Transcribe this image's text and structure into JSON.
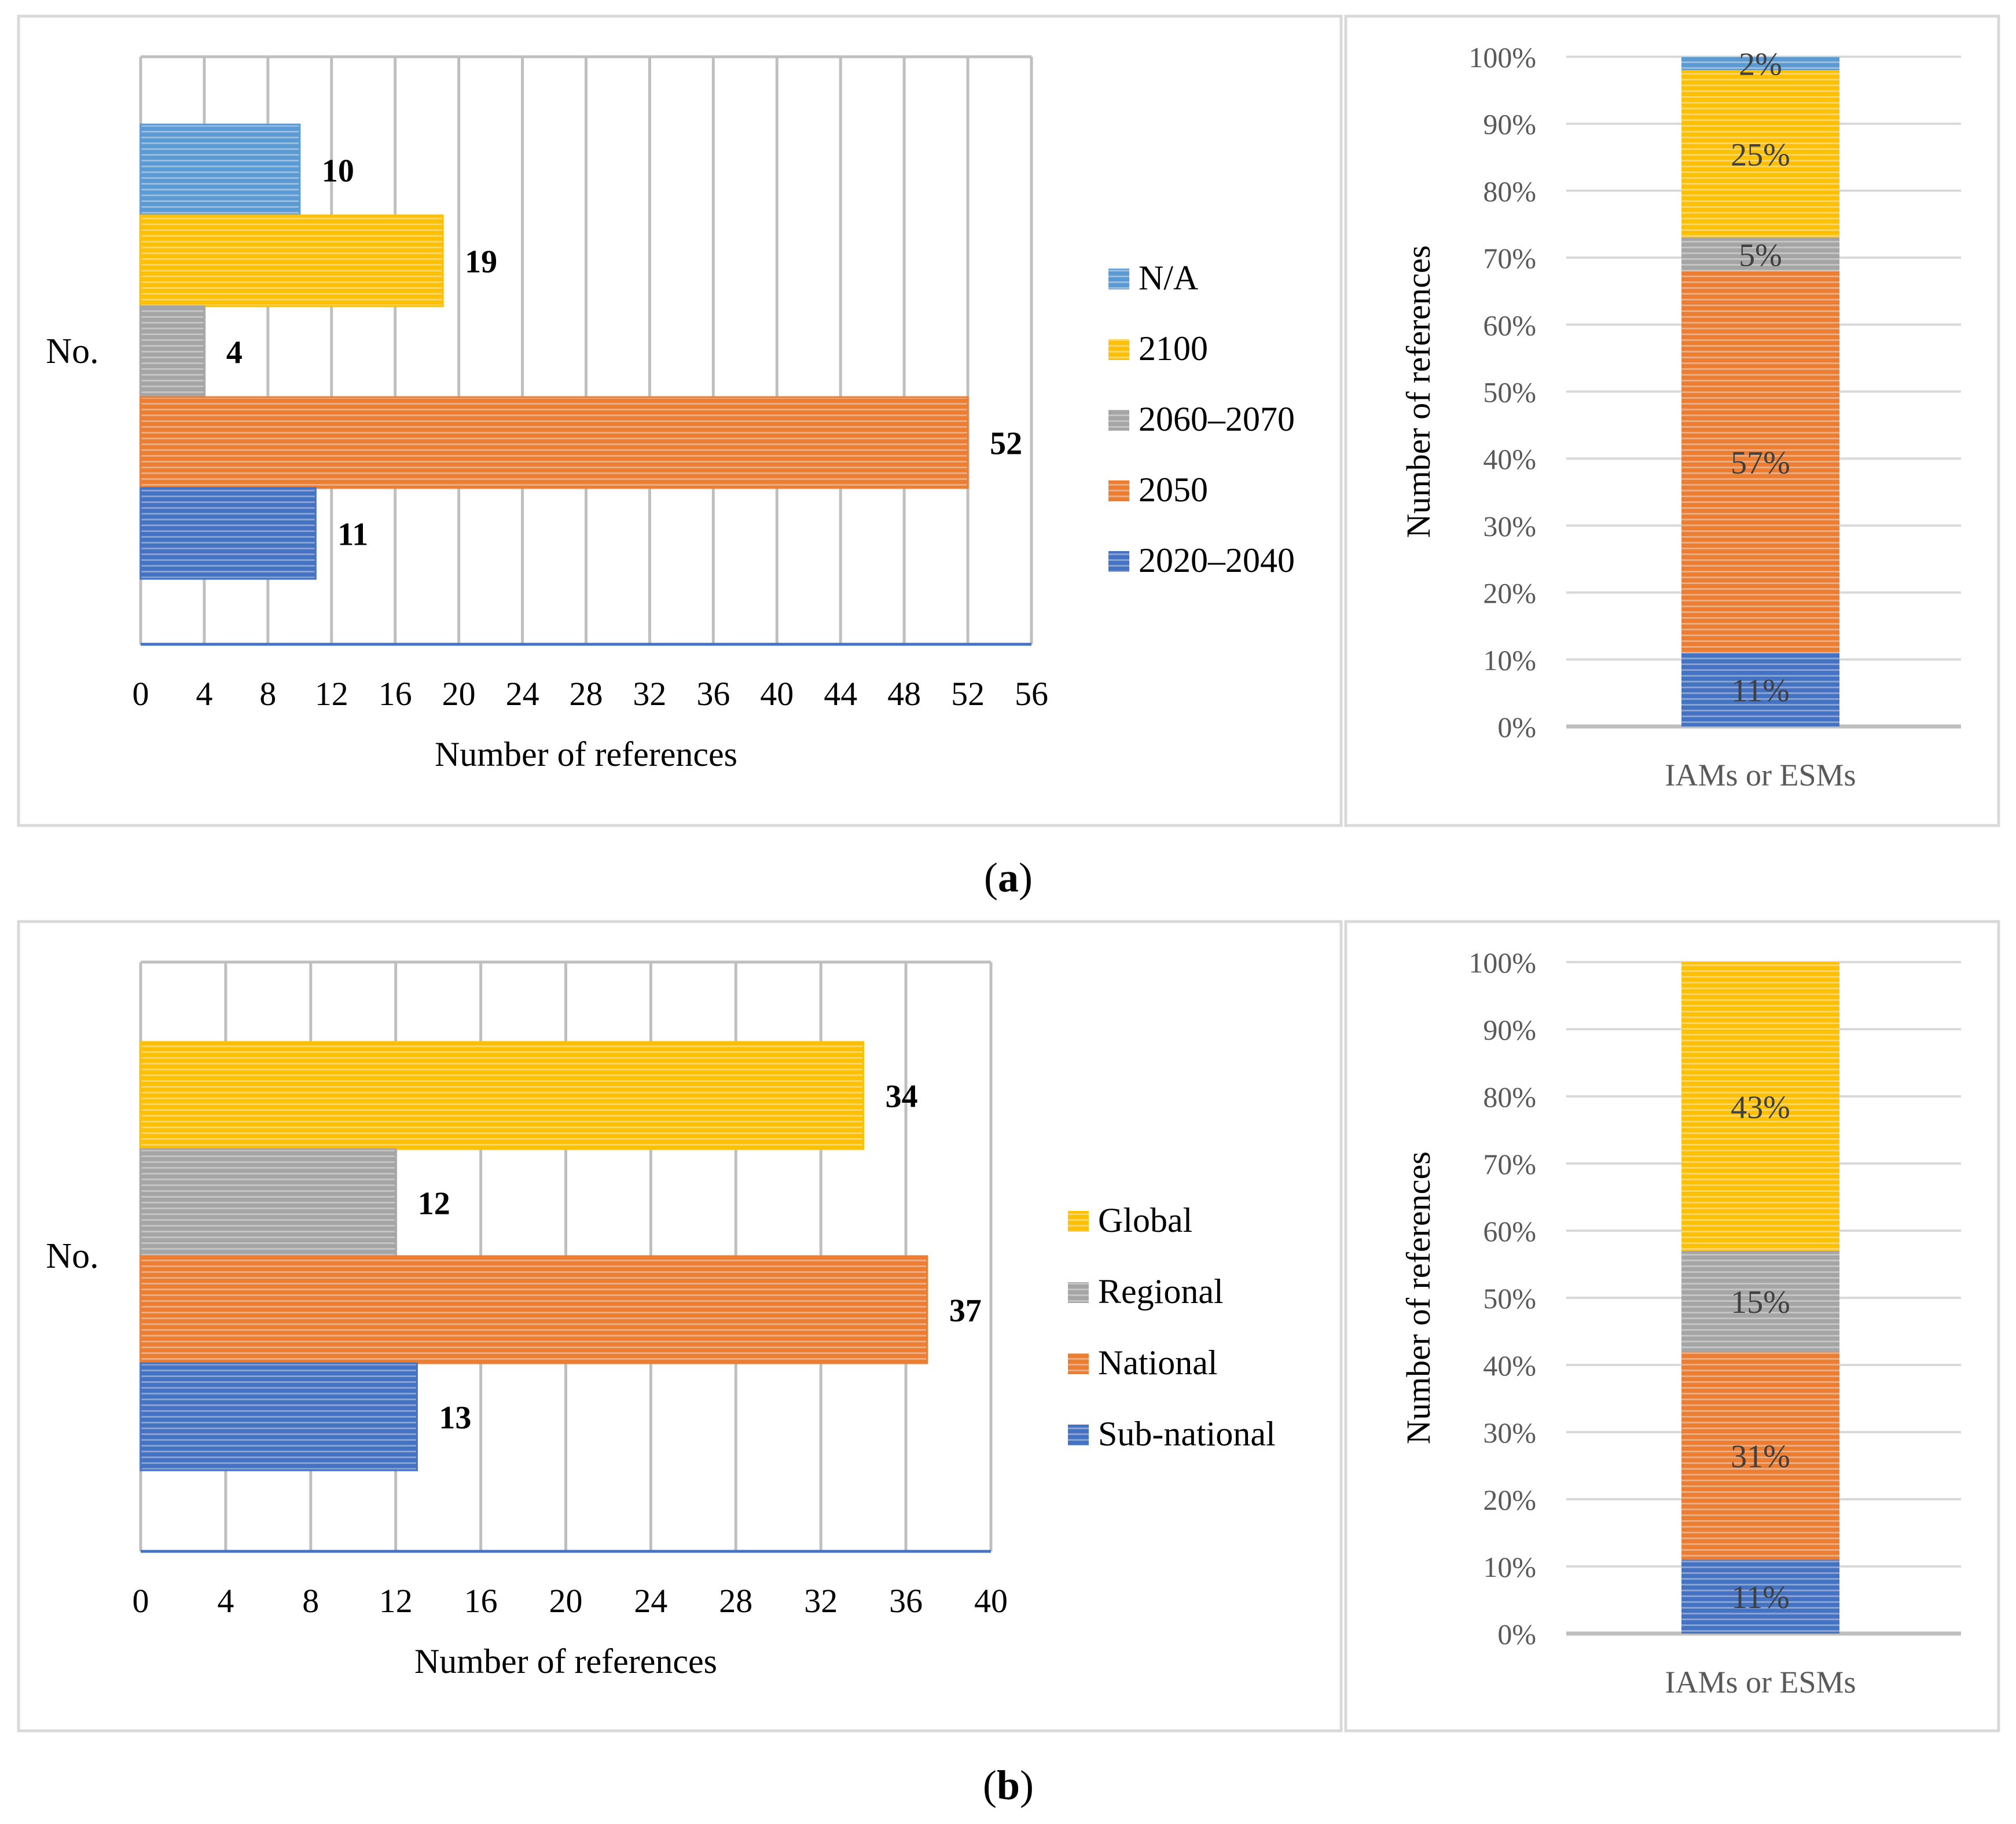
{
  "colors": {
    "sub_2020_2040": "#4472C4",
    "orange_2050": "#ED7D31",
    "gray_2060": "#A5A5A5",
    "yellow_2100": "#FFC000",
    "na_blue": "#5B9BD5",
    "grid": "#BFBFBF",
    "axis": "#4472C4",
    "panel_border": "#D9D9D9",
    "label_gray": "#595959"
  },
  "panel_labels": [
    "a",
    "b"
  ],
  "chart_data": [
    {
      "id": "a-bar",
      "type": "bar",
      "orientation": "horizontal",
      "category_label": "No.",
      "xlabel": "Number of references",
      "xlim": [
        0,
        56
      ],
      "xticks": [
        0,
        4,
        8,
        12,
        16,
        20,
        24,
        28,
        32,
        36,
        40,
        44,
        48,
        52,
        56
      ],
      "series": [
        {
          "name": "N/A",
          "value": 10,
          "color": "#5B9BD5"
        },
        {
          "name": "2100",
          "value": 19,
          "color": "#FFC000"
        },
        {
          "name": "2060–2070",
          "value": 4,
          "color": "#A5A5A5"
        },
        {
          "name": "2050",
          "value": 52,
          "color": "#ED7D31"
        },
        {
          "name": "2020–2040",
          "value": 11,
          "color": "#4472C4"
        }
      ],
      "legend": [
        "N/A",
        "2100",
        "2060–2070",
        "2050",
        "2020–2040"
      ]
    },
    {
      "id": "a-stack",
      "type": "bar",
      "stacked": "percent",
      "category": "IAMs or ESMs",
      "ylabel": "Number of references",
      "ylim": [
        0,
        100
      ],
      "yticks": [
        "0%",
        "10%",
        "20%",
        "30%",
        "40%",
        "50%",
        "60%",
        "70%",
        "80%",
        "90%",
        "100%"
      ],
      "segments": [
        {
          "name": "2020–2040",
          "value": 11,
          "label": "11%",
          "color": "#4472C4"
        },
        {
          "name": "2050",
          "value": 57,
          "label": "57%",
          "color": "#ED7D31"
        },
        {
          "name": "2060–2070",
          "value": 5,
          "label": "5%",
          "color": "#A5A5A5"
        },
        {
          "name": "2100",
          "value": 25,
          "label": "25%",
          "color": "#FFC000"
        },
        {
          "name": "N/A",
          "value": 2,
          "label": "2%",
          "color": "#5B9BD5"
        }
      ]
    },
    {
      "id": "b-bar",
      "type": "bar",
      "orientation": "horizontal",
      "category_label": "No.",
      "xlabel": "Number of references",
      "xlim": [
        0,
        40
      ],
      "xticks": [
        0,
        4,
        8,
        12,
        16,
        20,
        24,
        28,
        32,
        36,
        40
      ],
      "series": [
        {
          "name": "Global",
          "value": 34,
          "color": "#FFC000"
        },
        {
          "name": "Regional",
          "value": 12,
          "color": "#A5A5A5"
        },
        {
          "name": "National",
          "value": 37,
          "color": "#ED7D31"
        },
        {
          "name": "Sub-national",
          "value": 13,
          "color": "#4472C4"
        }
      ],
      "legend": [
        "Global",
        "Regional",
        "National",
        "Sub-national"
      ]
    },
    {
      "id": "b-stack",
      "type": "bar",
      "stacked": "percent",
      "category": "IAMs or ESMs",
      "ylabel": "Number of references",
      "ylim": [
        0,
        100
      ],
      "yticks": [
        "0%",
        "10%",
        "20%",
        "30%",
        "40%",
        "50%",
        "60%",
        "70%",
        "80%",
        "90%",
        "100%"
      ],
      "segments": [
        {
          "name": "Sub-national",
          "value": 11,
          "label": "11%",
          "color": "#4472C4"
        },
        {
          "name": "National",
          "value": 31,
          "label": "31%",
          "color": "#ED7D31"
        },
        {
          "name": "Regional",
          "value": 15,
          "label": "15%",
          "color": "#A5A5A5"
        },
        {
          "name": "Global",
          "value": 43,
          "label": "43%",
          "color": "#FFC000"
        }
      ]
    }
  ]
}
